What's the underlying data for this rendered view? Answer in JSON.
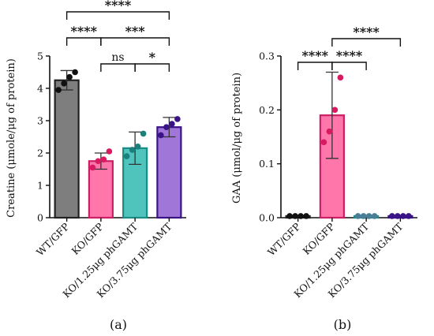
{
  "chart_data": [
    {
      "type": "bar",
      "panel_label": "(a)",
      "categories": [
        "WT/GFP",
        "KO/GFP",
        "KO/1.25μg phGAMT",
        "KO/3.75μg phGAMT"
      ],
      "values": [
        4.25,
        1.75,
        2.15,
        2.8
      ],
      "errors": [
        0.3,
        0.25,
        0.5,
        0.3
      ],
      "points": [
        [
          3.95,
          4.15,
          4.35,
          4.5
        ],
        [
          1.55,
          1.75,
          1.8,
          2.05
        ],
        [
          1.9,
          2.1,
          2.2,
          2.6
        ],
        [
          2.55,
          2.8,
          2.9,
          3.05
        ]
      ],
      "ylabel": "Creatine (μmole/μg of protein)",
      "ylim": [
        0,
        5
      ],
      "yticks": [
        0,
        1,
        2,
        3,
        4,
        5
      ],
      "ytick_labels": [
        "0",
        "1",
        "2",
        "3",
        "4",
        "5"
      ],
      "colors": [
        "#777777",
        "#ff6fa6",
        "#46c1b9",
        "#9b6fd6"
      ],
      "edge_colors": [
        "#222222",
        "#cc1f66",
        "#1a8c84",
        "#3a1487"
      ],
      "point_colors": [
        "#111111",
        "#d81b60",
        "#1b7f7a",
        "#3a1487"
      ],
      "comparisons": [
        {
          "from": 0,
          "to": 3,
          "label": "****"
        },
        {
          "from": 0,
          "to": 1,
          "label": "****"
        },
        {
          "from": 1,
          "to": 3,
          "label": "***"
        },
        {
          "from": 1,
          "to": 2,
          "label": "ns"
        },
        {
          "from": 2,
          "to": 3,
          "label": "*"
        }
      ]
    },
    {
      "type": "bar",
      "panel_label": "(b)",
      "categories": [
        "WT/GFP",
        "KO/GFP",
        "KO/1.25μg phGAMT",
        "KO/3.75μg phGAMT"
      ],
      "values": [
        0.003,
        0.19,
        0.003,
        0.003
      ],
      "errors": [
        0.0,
        0.08,
        0.0,
        0.0
      ],
      "points": [
        [
          0.003,
          0.003,
          0.003,
          0.003
        ],
        [
          0.14,
          0.16,
          0.2,
          0.26
        ],
        [
          0.003,
          0.003,
          0.003,
          0.003
        ],
        [
          0.003,
          0.003,
          0.003,
          0.003
        ]
      ],
      "ylabel": "GAA (μmol/μg of protein)",
      "ylim": [
        0,
        0.3
      ],
      "yticks": [
        0,
        0.1,
        0.2,
        0.3
      ],
      "ytick_labels": [
        "0.0",
        "0.1",
        "0.2",
        "0.3"
      ],
      "colors": [
        "#777777",
        "#ff6fa6",
        "#46c1b9",
        "#9b6fd6"
      ],
      "edge_colors": [
        "#222222",
        "#cc1f66",
        "#1a8c84",
        "#3a1487"
      ],
      "point_colors": [
        "#111111",
        "#d81b60",
        "#4a7d96",
        "#3a1487"
      ],
      "comparisons": [
        {
          "from": 0,
          "to": 1,
          "label": "****"
        },
        {
          "from": 1,
          "to": 2,
          "label": "****"
        },
        {
          "from": 1,
          "to": 3,
          "label": "****"
        }
      ]
    }
  ]
}
